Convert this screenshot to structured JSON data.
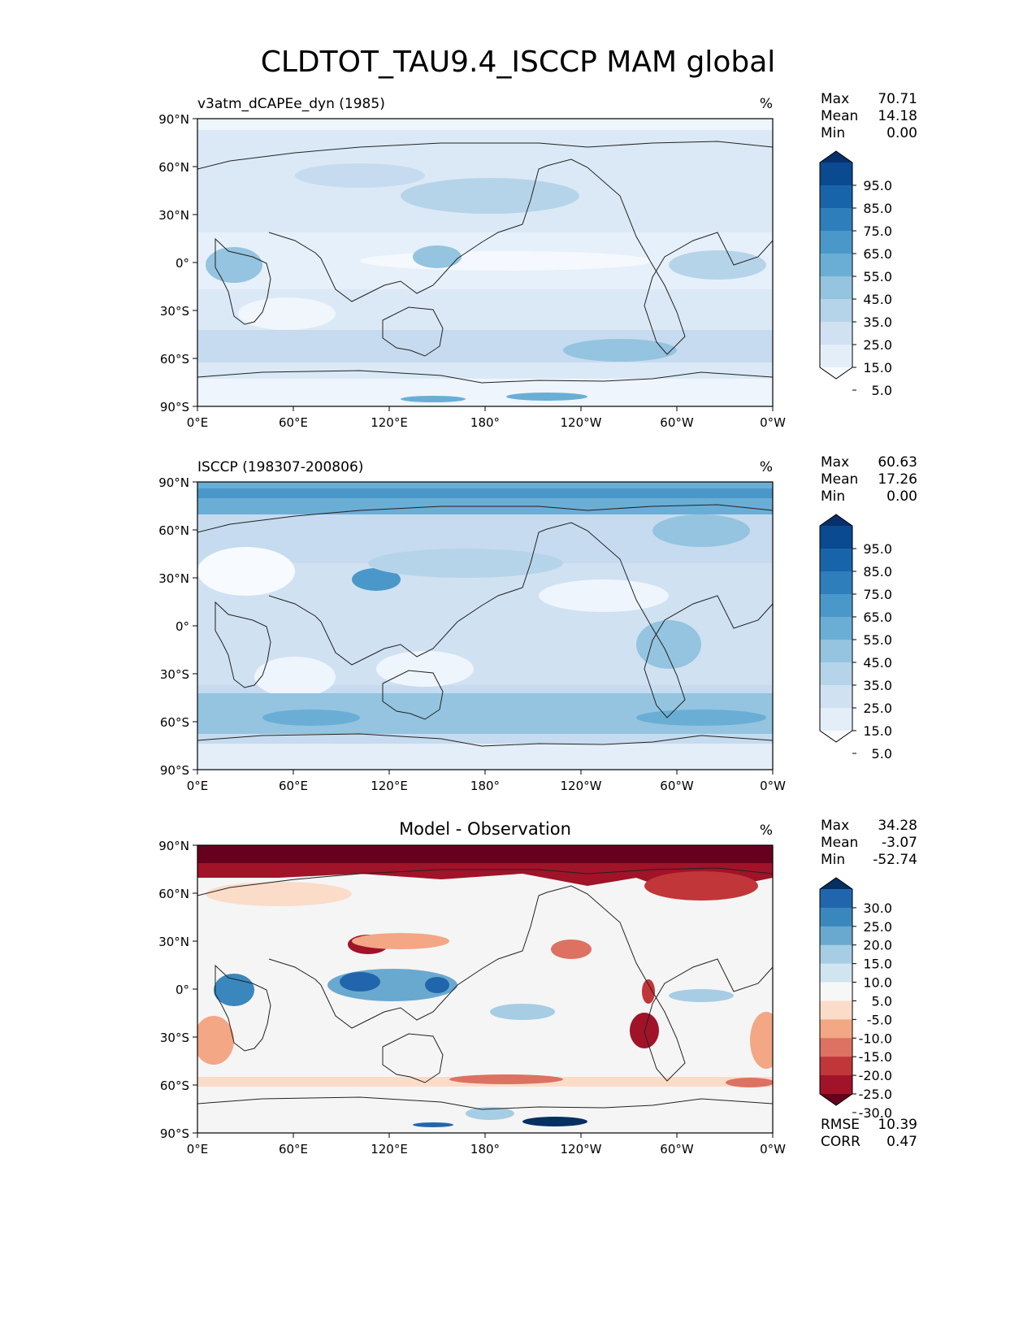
{
  "title": "CLDTOT_TAU9.4_ISCCP MAM global",
  "x_ticks": [
    "0°E",
    "60°E",
    "120°E",
    "180°",
    "120°W",
    "60°W",
    "0°W"
  ],
  "y_ticks": [
    "90°N",
    "60°N",
    "30°N",
    "0°",
    "30°S",
    "60°S",
    "90°S"
  ],
  "panels": [
    {
      "id": "model",
      "title": "v3atm_dCAPEe_dyn (1985)",
      "title_position": "left",
      "units": "%",
      "stats": {
        "max_label": "Max",
        "max": "70.71",
        "mean_label": "Mean",
        "mean": "14.18",
        "min_label": "Min",
        "min": "0.00"
      },
      "colorbar": {
        "labels": [
          "95.0",
          "85.0",
          "75.0",
          "65.0",
          "55.0",
          "45.0",
          "35.0",
          "25.0",
          "15.0",
          "5.0"
        ],
        "colors": [
          "#08306b",
          "#0a4a90",
          "#1764ab",
          "#2e7ebc",
          "#4a98c9",
          "#6aaed6",
          "#94c4df",
          "#b6d4e9",
          "#d0e1f2",
          "#e3eef9",
          "#f7fbff"
        ]
      },
      "base_color": "#dbe9f6"
    },
    {
      "id": "obs",
      "title": "ISCCP (198307-200806)",
      "title_position": "left",
      "units": "%",
      "stats": {
        "max_label": "Max",
        "max": "60.63",
        "mean_label": "Mean",
        "mean": "17.26",
        "min_label": "Min",
        "min": "0.00"
      },
      "colorbar": {
        "labels": [
          "95.0",
          "85.0",
          "75.0",
          "65.0",
          "55.0",
          "45.0",
          "35.0",
          "25.0",
          "15.0",
          "5.0"
        ],
        "colors": [
          "#08306b",
          "#0a4a90",
          "#1764ab",
          "#2e7ebc",
          "#4a98c9",
          "#6aaed6",
          "#94c4df",
          "#b6d4e9",
          "#d0e1f2",
          "#e3eef9",
          "#f7fbff"
        ]
      },
      "base_color": "#c6dbef"
    },
    {
      "id": "diff",
      "title": "Model - Observation",
      "title_position": "center",
      "units": "%",
      "stats": {
        "max_label": "Max",
        "max": "34.28",
        "mean_label": "Mean",
        "mean": "-3.07",
        "min_label": "Min",
        "min": "-52.74"
      },
      "colorbar": {
        "labels": [
          "30.0",
          "25.0",
          "20.0",
          "15.0",
          "10.0",
          "5.0",
          "-5.0",
          "-10.0",
          "-15.0",
          "-20.0",
          "-25.0",
          "-30.0"
        ],
        "colors": [
          "#053061",
          "#2166ac",
          "#3a87bd",
          "#6aa9cf",
          "#a6cde3",
          "#d1e5f0",
          "#f7f7f7",
          "#fbdcc9",
          "#f3a785",
          "#dd7262",
          "#c13639",
          "#a01328",
          "#67001f"
        ]
      },
      "base_color": "#f5f5f5",
      "metrics": {
        "rmse_label": "RMSE",
        "rmse": "10.39",
        "corr_label": "CORR",
        "corr": "0.47"
      }
    }
  ]
}
